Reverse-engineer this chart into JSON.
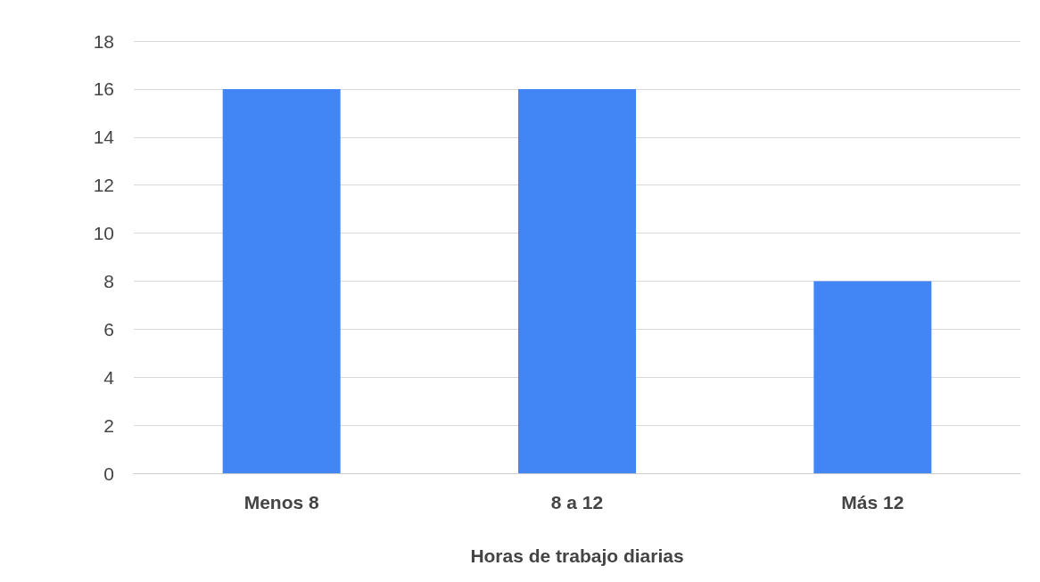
{
  "chart_data": {
    "type": "bar",
    "xlabel": "Horas de trabajo diarias",
    "categories": [
      "Menos 8",
      "8 a 12",
      "Más 12"
    ],
    "values": [
      16,
      16,
      8
    ],
    "color": "#4285f4",
    "ylim": [
      0,
      18
    ],
    "yticks": [
      0,
      2,
      4,
      6,
      8,
      10,
      12,
      14,
      16,
      18
    ],
    "grid": "y"
  }
}
